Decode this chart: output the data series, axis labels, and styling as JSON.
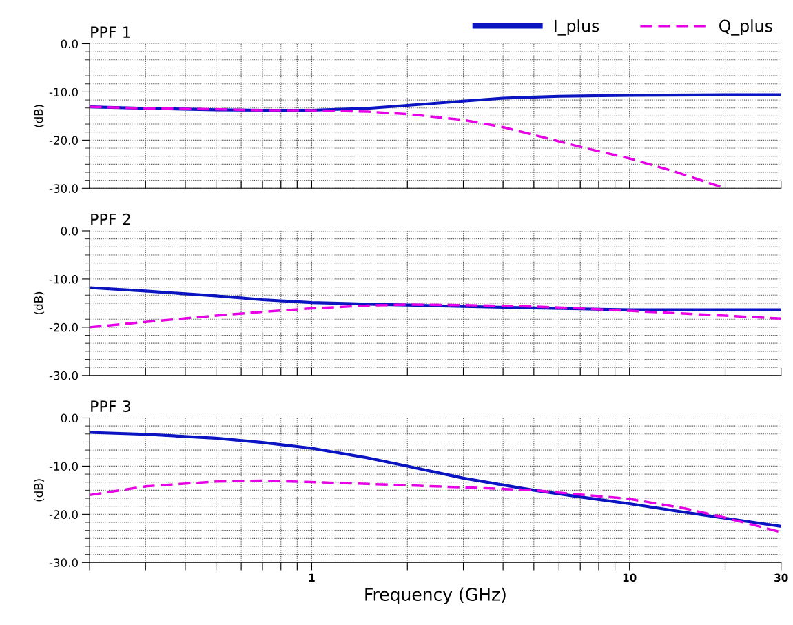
{
  "chart_data": [
    {
      "type": "line",
      "title": "PPF 1",
      "ylabel": "(dB)",
      "log": "x",
      "grid": true,
      "legend": "top",
      "tick_labels": "y",
      "xlim": [
        0.2,
        30
      ],
      "ylim": [
        -30,
        0
      ],
      "xticks": [
        {
          "value": 0.2,
          "label": null
        },
        {
          "value": 0.3,
          "label": null
        },
        {
          "value": 0.4,
          "label": null
        },
        {
          "value": 0.5,
          "label": null
        },
        {
          "value": 0.6,
          "label": null
        },
        {
          "value": 0.7,
          "label": null
        },
        {
          "value": 0.8,
          "label": null
        },
        {
          "value": 0.9,
          "label": null
        },
        1,
        {
          "value": 2,
          "label": null
        },
        {
          "value": 3,
          "label": null
        },
        {
          "value": 4,
          "label": null
        },
        {
          "value": 5,
          "label": null
        },
        {
          "value": 6,
          "label": null
        },
        {
          "value": 7,
          "label": null
        },
        {
          "value": 8,
          "label": null
        },
        {
          "value": 9,
          "label": null
        },
        10,
        {
          "value": 20,
          "label": null
        },
        30
      ],
      "yticks": [
        {
          "value": 0,
          "label": "0.0"
        },
        {
          "value": -10,
          "label": "-10.0"
        },
        {
          "value": -20,
          "label": "-20.0"
        },
        {
          "value": -30,
          "label": "-30.0"
        }
      ],
      "series": [
        {
          "name": "I_plus",
          "color": "#0a14c0",
          "line_style": "solid",
          "x": [
            0.2,
            0.3,
            0.5,
            0.7,
            1,
            1.5,
            2,
            3,
            4,
            6,
            10,
            20,
            30
          ],
          "values": [
            -13.1,
            -13.4,
            -13.7,
            -13.8,
            -13.8,
            -13.4,
            -12.8,
            -11.9,
            -11.3,
            -10.9,
            -10.7,
            -10.6,
            -10.6
          ]
        },
        {
          "name": "Q_plus",
          "color": "#e600e6",
          "line_style": "dashed",
          "x": [
            0.2,
            0.3,
            0.5,
            0.7,
            1,
            1.5,
            2,
            3,
            4,
            5.5,
            7,
            10,
            14,
            20
          ],
          "values": [
            -13.1,
            -13.4,
            -13.6,
            -13.8,
            -13.8,
            -14.1,
            -14.6,
            -15.8,
            -17.3,
            -19.6,
            -21.4,
            -23.8,
            -26.6,
            -30.0
          ]
        }
      ]
    },
    {
      "type": "line",
      "title": "PPF 2",
      "ylabel": "(dB)",
      "log": "x",
      "grid": true,
      "tick_labels": "y",
      "xlim": [
        0.2,
        30
      ],
      "ylim": [
        -30,
        0
      ],
      "xticks": [
        {
          "value": 0.2,
          "label": null
        },
        {
          "value": 0.3,
          "label": null
        },
        {
          "value": 0.4,
          "label": null
        },
        {
          "value": 0.5,
          "label": null
        },
        {
          "value": 0.6,
          "label": null
        },
        {
          "value": 0.7,
          "label": null
        },
        {
          "value": 0.8,
          "label": null
        },
        {
          "value": 0.9,
          "label": null
        },
        1,
        {
          "value": 2,
          "label": null
        },
        {
          "value": 3,
          "label": null
        },
        {
          "value": 4,
          "label": null
        },
        {
          "value": 5,
          "label": null
        },
        {
          "value": 6,
          "label": null
        },
        {
          "value": 7,
          "label": null
        },
        {
          "value": 8,
          "label": null
        },
        {
          "value": 9,
          "label": null
        },
        10,
        {
          "value": 20,
          "label": null
        },
        30
      ],
      "yticks": [
        {
          "value": 0,
          "label": "0.0"
        },
        {
          "value": -10,
          "label": "-10.0"
        },
        {
          "value": -20,
          "label": "-20.0"
        },
        {
          "value": -30,
          "label": "-30.0"
        }
      ],
      "series": [
        {
          "color": "#0a14c0",
          "line_style": "solid",
          "x": [
            0.2,
            0.3,
            0.5,
            0.7,
            1,
            1.5,
            2,
            3,
            5,
            7,
            10,
            20,
            30
          ],
          "values": [
            -11.8,
            -12.5,
            -13.5,
            -14.3,
            -14.9,
            -15.2,
            -15.4,
            -15.7,
            -16.0,
            -16.2,
            -16.4,
            -16.4,
            -16.4
          ]
        },
        {
          "color": "#e600e6",
          "line_style": "dashed",
          "x": [
            0.2,
            0.3,
            0.5,
            0.7,
            1,
            1.5,
            2,
            3,
            5,
            7,
            10,
            20,
            30
          ],
          "values": [
            -20.0,
            -18.9,
            -17.6,
            -16.8,
            -16.1,
            -15.5,
            -15.3,
            -15.4,
            -15.7,
            -16.1,
            -16.6,
            -17.6,
            -18.2
          ]
        }
      ]
    },
    {
      "type": "line",
      "title": "PPF 3",
      "ylabel": "(dB)",
      "xlabel": "Frequency (GHz)",
      "log": "x",
      "grid": true,
      "xlim": [
        0.2,
        30
      ],
      "ylim": [
        -30,
        0
      ],
      "xticks": [
        {
          "value": 0.2,
          "label": null
        },
        {
          "value": 0.3,
          "label": null
        },
        {
          "value": 0.4,
          "label": null
        },
        {
          "value": 0.5,
          "label": null
        },
        {
          "value": 0.6,
          "label": null
        },
        {
          "value": 0.7,
          "label": null
        },
        {
          "value": 0.8,
          "label": null
        },
        {
          "value": 0.9,
          "label": null
        },
        1,
        {
          "value": 2,
          "label": null
        },
        {
          "value": 3,
          "label": null
        },
        {
          "value": 4,
          "label": null
        },
        {
          "value": 5,
          "label": null
        },
        {
          "value": 6,
          "label": null
        },
        {
          "value": 7,
          "label": null
        },
        {
          "value": 8,
          "label": null
        },
        {
          "value": 9,
          "label": null
        },
        10,
        {
          "value": 20,
          "label": null
        },
        30
      ],
      "yticks": [
        {
          "value": 0,
          "label": "0.0"
        },
        {
          "value": -10,
          "label": "-10.0"
        },
        {
          "value": -20,
          "label": "-20.0"
        },
        {
          "value": -30,
          "label": "-30.0"
        }
      ],
      "series": [
        {
          "color": "#0a14c0",
          "line_style": "solid",
          "x": [
            0.2,
            0.3,
            0.5,
            0.7,
            1,
            1.5,
            2,
            3,
            5,
            7,
            10,
            15,
            20,
            30
          ],
          "values": [
            -3.0,
            -3.4,
            -4.2,
            -5.1,
            -6.3,
            -8.3,
            -10.0,
            -12.5,
            -15.0,
            -16.4,
            -17.8,
            -19.6,
            -20.8,
            -22.5
          ]
        },
        {
          "color": "#e600e6",
          "line_style": "dashed",
          "x": [
            0.2,
            0.3,
            0.5,
            0.7,
            1,
            1.5,
            2,
            3,
            5,
            7,
            10,
            15,
            20,
            30
          ],
          "values": [
            -16.0,
            -14.2,
            -13.2,
            -13.0,
            -13.3,
            -13.7,
            -14.0,
            -14.4,
            -15.0,
            -15.9,
            -16.8,
            -18.8,
            -20.7,
            -23.7
          ]
        }
      ]
    }
  ]
}
